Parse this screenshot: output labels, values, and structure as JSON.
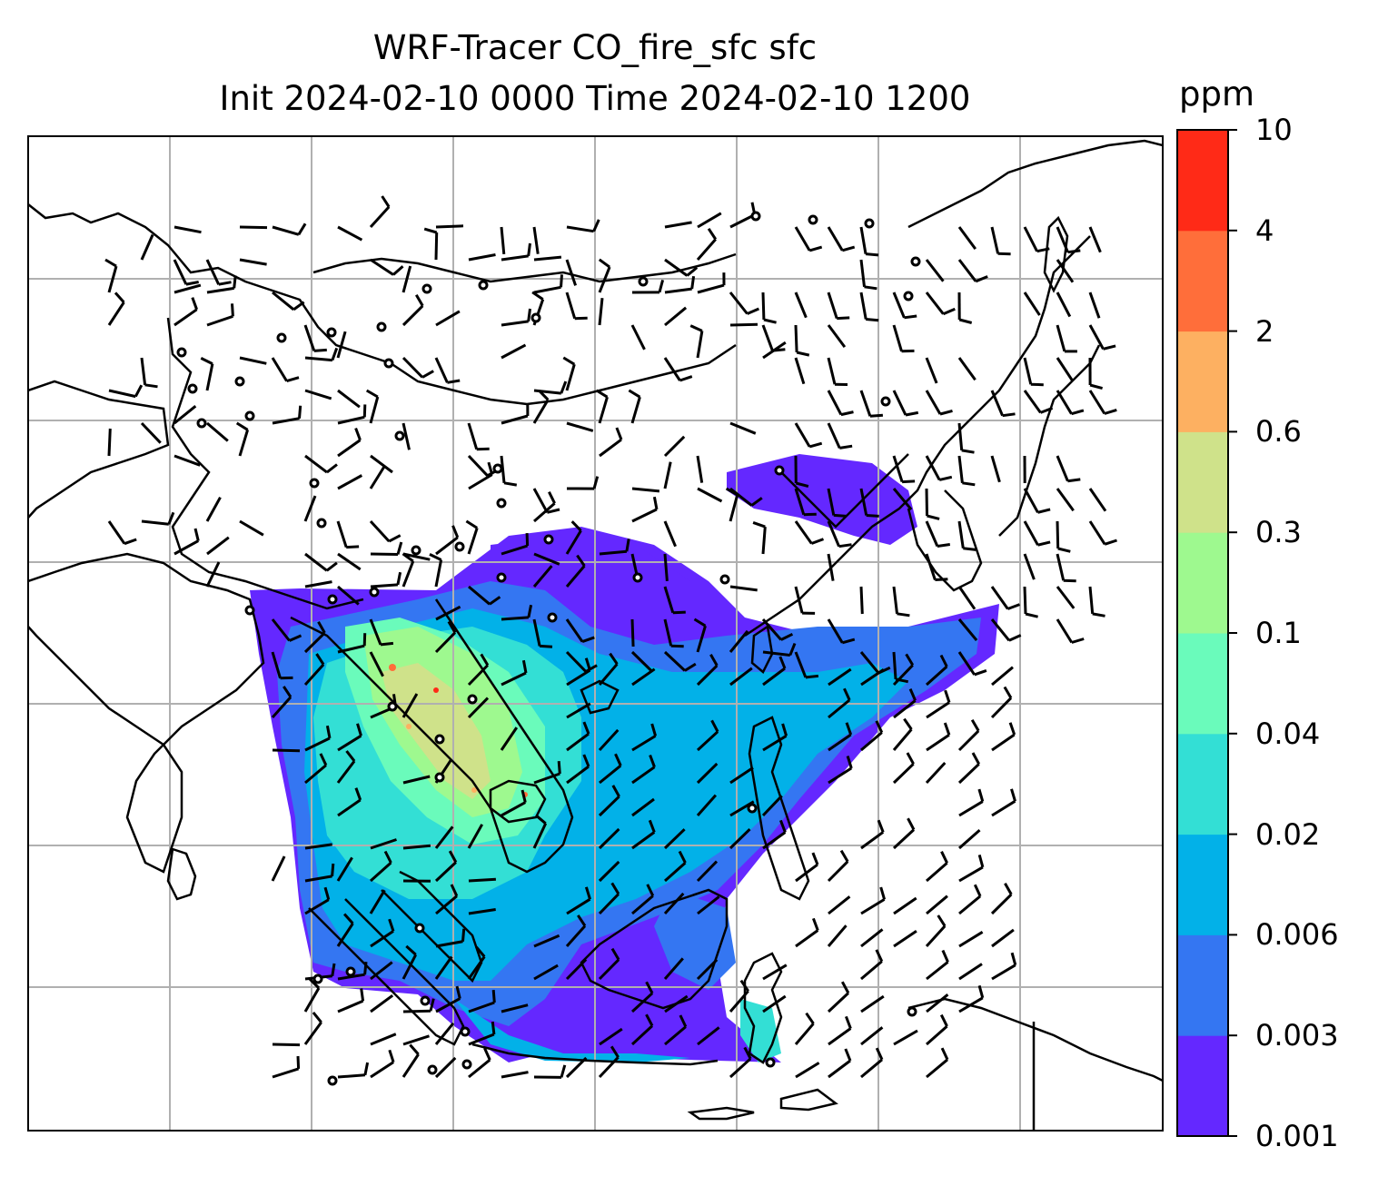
{
  "title": {
    "line1": "WRF-Tracer CO_fire_sfc sfc",
    "line2": "Init 2024-02-10 0000 Time 2024-02-10 1200"
  },
  "colorbar": {
    "unit": "ppm",
    "levels": [
      "0.001",
      "0.003",
      "0.006",
      "0.02",
      "0.04",
      "0.1",
      "0.3",
      "0.6",
      "2",
      "4",
      "10"
    ],
    "colors": [
      "#6428ff",
      "#3476f2",
      "#02b1e8",
      "#33dfd5",
      "#6afbbb",
      "#9ef98f",
      "#cfe28a",
      "#fdb061",
      "#ff6e3a",
      "#ff2a17"
    ]
  },
  "map": {
    "gridlines": true,
    "region": "South / Southeast / East Asia",
    "features": [
      "coastlines",
      "country borders",
      "wind barbs",
      "calm-wind circles",
      "CO fire tracer concentration"
    ]
  }
}
